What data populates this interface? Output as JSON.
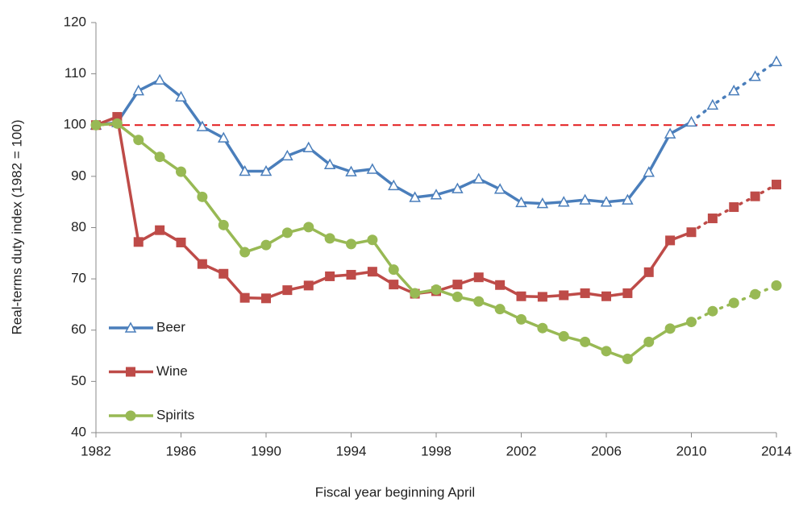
{
  "chart_data": {
    "type": "line",
    "x_label": "Fiscal year beginning April",
    "y_label": "Real-terms duty index (1982 = 100)",
    "x": [
      1982,
      1983,
      1984,
      1985,
      1986,
      1987,
      1988,
      1989,
      1990,
      1991,
      1992,
      1993,
      1994,
      1995,
      1996,
      1997,
      1998,
      1999,
      2000,
      2001,
      2002,
      2003,
      2004,
      2005,
      2006,
      2007,
      2008,
      2009,
      2010,
      2011,
      2012,
      2013,
      2014
    ],
    "series": [
      {
        "name": "Beer",
        "color": "#4a7ebb",
        "marker": "triangle",
        "values": [
          100,
          100.5,
          106.7,
          108.8,
          105.5,
          99.7,
          97.5,
          91,
          91,
          94,
          95.6,
          92.3,
          90.9,
          91.4,
          88.2,
          85.9,
          86.4,
          87.6,
          89.5,
          87.5,
          84.9,
          84.7,
          85,
          85.4,
          85,
          85.4,
          90.8,
          98.3,
          100.6,
          103.9,
          106.7,
          109.5,
          112.4
        ]
      },
      {
        "name": "Wine",
        "color": "#be4b48",
        "marker": "square",
        "values": [
          100,
          101.6,
          77.2,
          79.5,
          77.1,
          72.9,
          71,
          66.3,
          66.2,
          67.8,
          68.7,
          70.5,
          70.8,
          71.4,
          68.9,
          67.1,
          67.6,
          68.9,
          70.3,
          68.8,
          66.6,
          66.5,
          66.8,
          67.2,
          66.6,
          67.2,
          71.3,
          77.5,
          79.1,
          81.8,
          84,
          86.1,
          88.4
        ]
      },
      {
        "name": "Spirits",
        "color": "#98b954",
        "marker": "circle",
        "values": [
          100,
          100.3,
          97.1,
          93.8,
          90.9,
          86,
          80.5,
          75.2,
          76.6,
          79,
          80.1,
          77.9,
          76.8,
          77.6,
          71.8,
          67.2,
          67.9,
          66.5,
          65.6,
          64.1,
          62.1,
          60.4,
          58.8,
          57.7,
          55.9,
          54.4,
          57.7,
          60.3,
          61.6,
          63.7,
          65.3,
          67,
          68.7
        ]
      }
    ],
    "dotted_from": 2010,
    "reference_line": {
      "value": 100,
      "color": "#e31a1c",
      "dashed": true
    },
    "xlim": [
      1982,
      2014
    ],
    "xticks": [
      1982,
      1986,
      1990,
      1994,
      1998,
      2002,
      2006,
      2010,
      2014
    ],
    "ylim": [
      40,
      120
    ],
    "yticks": [
      40,
      50,
      60,
      70,
      80,
      90,
      100,
      110,
      120
    ],
    "grid": false,
    "legend": "lower left"
  }
}
